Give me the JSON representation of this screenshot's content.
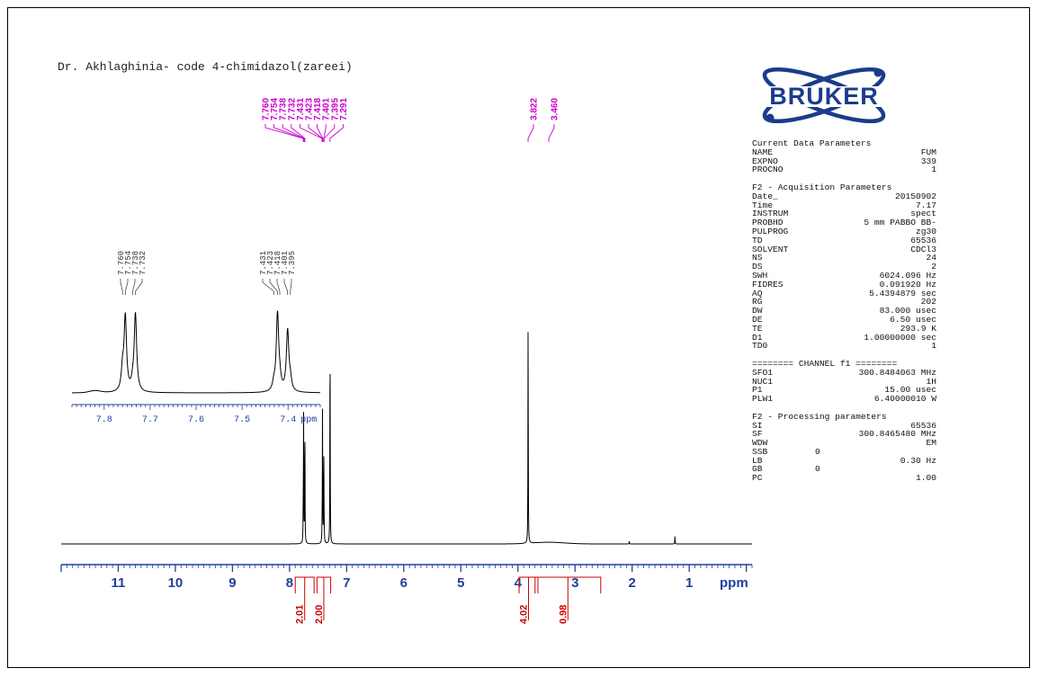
{
  "header": {
    "title": "Dr. Akhlaghinia- code 4-chimidazol(zareei)"
  },
  "logo": {
    "text": "BRUKER",
    "color": "#1a3c8c"
  },
  "colors": {
    "peak_label": "#cc00cc",
    "integral": "#cc0000",
    "axis": "#1f3f9c",
    "inset_axis": "#1f3f9c",
    "trace": "#000000"
  },
  "parameters": {
    "current": {
      "title": "Current Data Parameters",
      "rows": [
        {
          "k": "NAME",
          "v": "FUM"
        },
        {
          "k": "EXPNO",
          "v": "339"
        },
        {
          "k": "PROCNO",
          "v": "1"
        }
      ]
    },
    "acquisition": {
      "title": "F2 - Acquisition Parameters",
      "rows": [
        {
          "k": "Date_",
          "v": "20150902"
        },
        {
          "k": "Time",
          "v": "7.17"
        },
        {
          "k": "INSTRUM",
          "v": "spect"
        },
        {
          "k": "PROBHD",
          "v": "5 mm PABBO BB-"
        },
        {
          "k": "PULPROG",
          "v": "zg30"
        },
        {
          "k": "TD",
          "v": "65536"
        },
        {
          "k": "SOLVENT",
          "v": "CDCl3"
        },
        {
          "k": "NS",
          "v": "24"
        },
        {
          "k": "DS",
          "v": "2"
        },
        {
          "k": "SWH",
          "v": "6024.096 Hz"
        },
        {
          "k": "FIDRES",
          "v": "0.091920 Hz"
        },
        {
          "k": "AQ",
          "v": "5.4394879 sec"
        },
        {
          "k": "RG",
          "v": "202"
        },
        {
          "k": "DW",
          "v": "83.000 usec"
        },
        {
          "k": "DE",
          "v": "6.50 usec"
        },
        {
          "k": "TE",
          "v": "293.9 K"
        },
        {
          "k": "D1",
          "v": "1.00000000 sec"
        },
        {
          "k": "TD0",
          "v": "1"
        }
      ]
    },
    "channel": {
      "title": "======== CHANNEL f1 ========",
      "rows": [
        {
          "k": "SFO1",
          "v": "300.8484063 MHz"
        },
        {
          "k": "NUC1",
          "v": "1H"
        },
        {
          "k": "P1",
          "v": "15.00 usec"
        },
        {
          "k": "PLW1",
          "v": "6.40000010 W"
        }
      ]
    },
    "processing": {
      "title": "F2 - Processing parameters",
      "rows": [
        {
          "k": "SI",
          "v": "65536"
        },
        {
          "k": "SF",
          "v": "300.8465480 MHz"
        },
        {
          "k": "WDW",
          "v": "EM"
        },
        {
          "k": "SSB",
          "v": "0",
          "left": true
        },
        {
          "k": "LB",
          "v": "0.30 Hz"
        },
        {
          "k": "GB",
          "v": "0",
          "left": true
        },
        {
          "k": "PC",
          "v": "1.00"
        }
      ]
    }
  },
  "chart_data": {
    "type": "line",
    "x_unit": "ppm",
    "xlim": [
      12.0,
      -0.1
    ],
    "x_ticks": [
      11,
      10,
      9,
      8,
      7,
      6,
      5,
      4,
      3,
      2,
      1
    ],
    "peak_labels": [
      "7.760",
      "7.754",
      "7.738",
      "7.732",
      "7.431",
      "7.423",
      "7.418",
      "7.401",
      "7.395",
      "7.291",
      "3.822",
      "3.460"
    ],
    "peaks": [
      {
        "ppm": 7.76,
        "height": 0.12
      },
      {
        "ppm": 7.754,
        "height": 0.44
      },
      {
        "ppm": 7.738,
        "height": 0.04
      },
      {
        "ppm": 7.732,
        "height": 0.46
      },
      {
        "ppm": 7.431,
        "height": 0.04
      },
      {
        "ppm": 7.423,
        "height": 0.46
      },
      {
        "ppm": 7.418,
        "height": 0.05
      },
      {
        "ppm": 7.401,
        "height": 0.36
      },
      {
        "ppm": 7.395,
        "height": 0.06
      },
      {
        "ppm": 7.291,
        "height": 0.83
      },
      {
        "ppm": 3.822,
        "height": 0.85
      },
      {
        "ppm": 2.05,
        "height": 0.01
      },
      {
        "ppm": 1.25,
        "height": 0.03
      }
    ],
    "integrals": [
      {
        "from": 7.9,
        "to": 7.57,
        "value": "2.01"
      },
      {
        "from": 7.52,
        "to": 7.28,
        "value": "2.00"
      },
      {
        "from": 3.98,
        "to": 3.65,
        "value": "4.02"
      },
      {
        "from": 3.7,
        "to": 2.55,
        "value": "0.98"
      }
    ],
    "inset": {
      "xlim": [
        7.87,
        7.33
      ],
      "x_ticks": [
        7.8,
        7.7,
        7.6,
        7.5,
        7.4
      ],
      "x_unit": "ppm",
      "peak_labels": [
        "7.760",
        "7.754",
        "7.738",
        "7.732",
        "7.431",
        "7.423",
        "7.418",
        "7.401",
        "7.395"
      ]
    }
  }
}
